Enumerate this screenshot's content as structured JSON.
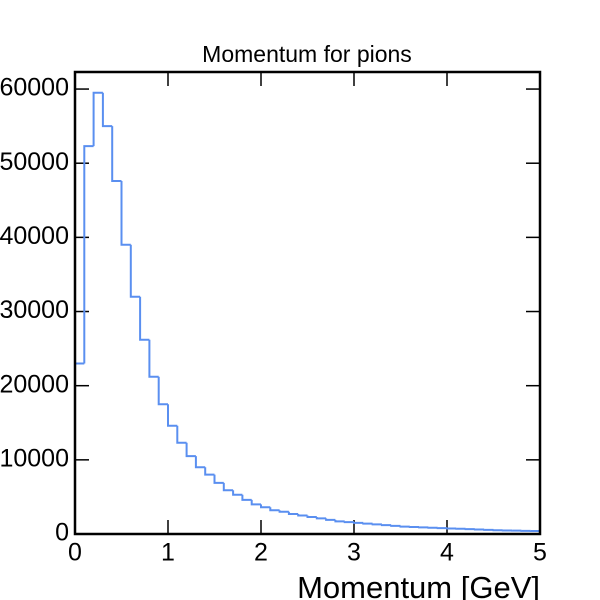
{
  "chart_data": {
    "type": "histogram",
    "title": "Momentum for pions",
    "x_label": "Momentum [GeV]",
    "bins": [
      0,
      0.1,
      0.2,
      0.3,
      0.4,
      0.5,
      0.6,
      0.7,
      0.8,
      0.9,
      1,
      1.1,
      1.2,
      1.3,
      1.4,
      1.5,
      1.6,
      1.7,
      1.8,
      1.9,
      2,
      2.1,
      2.2,
      2.3,
      2.4,
      2.5,
      2.6,
      2.7,
      2.8,
      2.9,
      3,
      3.1,
      3.2,
      3.3,
      3.4,
      3.5,
      3.6,
      3.7,
      3.8,
      3.9,
      4,
      4.1,
      4.2,
      4.3,
      4.4,
      4.5,
      4.6,
      4.7,
      4.8,
      4.9,
      5
    ],
    "values": [
      23000,
      52300,
      59500,
      55000,
      47600,
      39000,
      32000,
      26200,
      21200,
      17500,
      14600,
      12300,
      10500,
      9000,
      8000,
      6900,
      5900,
      5300,
      4600,
      4000,
      3600,
      3200,
      3000,
      2700,
      2500,
      2300,
      2100,
      1900,
      1700,
      1600,
      1500,
      1400,
      1300,
      1200,
      1100,
      1000,
      950,
      900,
      850,
      800,
      750,
      700,
      650,
      600,
      550,
      500,
      480,
      450,
      420,
      400
    ],
    "color": "#5a8ff0",
    "xlim": [
      0,
      5
    ],
    "xticks": [
      0,
      1,
      2,
      3,
      4,
      5
    ],
    "ylim": [
      0,
      62300
    ],
    "yticks": [
      0,
      10000,
      20000,
      30000,
      40000,
      50000,
      60000
    ]
  }
}
